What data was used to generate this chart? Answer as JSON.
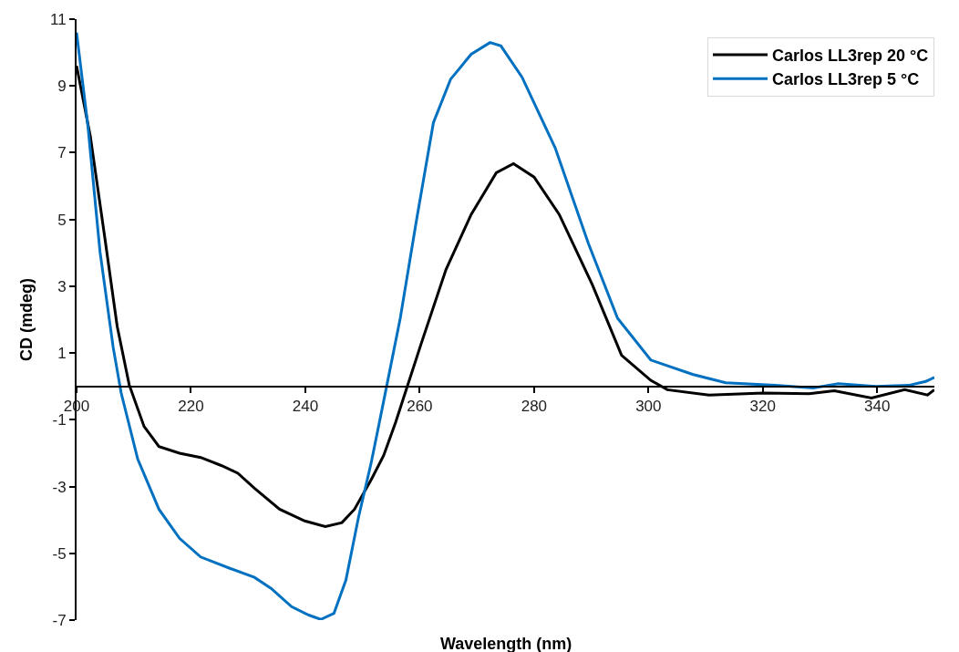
{
  "chart_data": {
    "type": "line",
    "xlabel": "Wavelength (nm)",
    "ylabel": "CD (mdeg)",
    "xlim": [
      200,
      350
    ],
    "xticks": [
      200,
      220,
      240,
      260,
      280,
      300,
      320,
      340
    ],
    "ylim": [
      -7,
      11
    ],
    "yticks": [
      -7,
      -5,
      -3,
      -1,
      1,
      3,
      5,
      7,
      9,
      11
    ],
    "legend": "top right",
    "marker": "none",
    "line_style": "solid",
    "series": [
      {
        "name": "Carlos LL3rep 20 °C",
        "color": "#000000",
        "x": [
          200,
          202.4,
          204.9,
          207.1,
          209.2,
          211.8,
          214.4,
          218,
          221.7,
          225.3,
          228.2,
          231.1,
          235.5,
          239.9,
          243.5,
          246.4,
          248.6,
          251.5,
          253.7,
          255.8,
          257.7,
          260.3,
          264.6,
          269,
          273.4,
          276.4,
          280,
          284.4,
          290.2,
          295.3,
          300.4,
          303.3,
          310.6,
          320.1,
          328.1,
          332.5,
          339,
          344.8,
          348.8,
          350
        ],
        "values": [
          9.6,
          7.5,
          4.5,
          1.8,
          0.05,
          -1.2,
          -1.8,
          -2.0,
          -2.13,
          -2.37,
          -2.6,
          -3.05,
          -3.68,
          -4.03,
          -4.2,
          -4.08,
          -3.68,
          -2.8,
          -2.07,
          -1.07,
          -0.07,
          1.3,
          3.5,
          5.15,
          6.4,
          6.67,
          6.27,
          5.15,
          3.04,
          0.93,
          0.18,
          -0.1,
          -0.26,
          -0.2,
          -0.22,
          -0.13,
          -0.35,
          -0.1,
          -0.26,
          -0.1
        ]
      },
      {
        "name": "Carlos LL3rep 5 °C",
        "color": "#0070c0",
        "x": [
          200,
          202,
          204.1,
          206.4,
          207.8,
          210.7,
          214.4,
          218,
          221.7,
          226.8,
          231.1,
          234,
          237.6,
          240.6,
          242.7,
          245,
          247.1,
          249.3,
          251.5,
          253.7,
          256.6,
          259.5,
          262.4,
          265.4,
          269,
          272.3,
          274.2,
          277.9,
          283.7,
          289.5,
          294.6,
          300.4,
          307.7,
          313.5,
          322.2,
          328.8,
          333.2,
          339.7,
          345.5,
          348.5,
          350
        ],
        "values": [
          10.6,
          7.77,
          4.03,
          1.17,
          -0.2,
          -2.18,
          -3.68,
          -4.55,
          -5.11,
          -5.45,
          -5.72,
          -6.05,
          -6.6,
          -6.85,
          -6.98,
          -6.8,
          -5.8,
          -3.92,
          -2.3,
          -0.44,
          2.04,
          5.04,
          7.9,
          9.2,
          9.95,
          10.3,
          10.2,
          9.26,
          7.14,
          4.28,
          2.04,
          0.79,
          0.36,
          0.11,
          0.03,
          -0.05,
          0.08,
          0,
          0.03,
          0.15,
          0.27
        ]
      }
    ]
  }
}
